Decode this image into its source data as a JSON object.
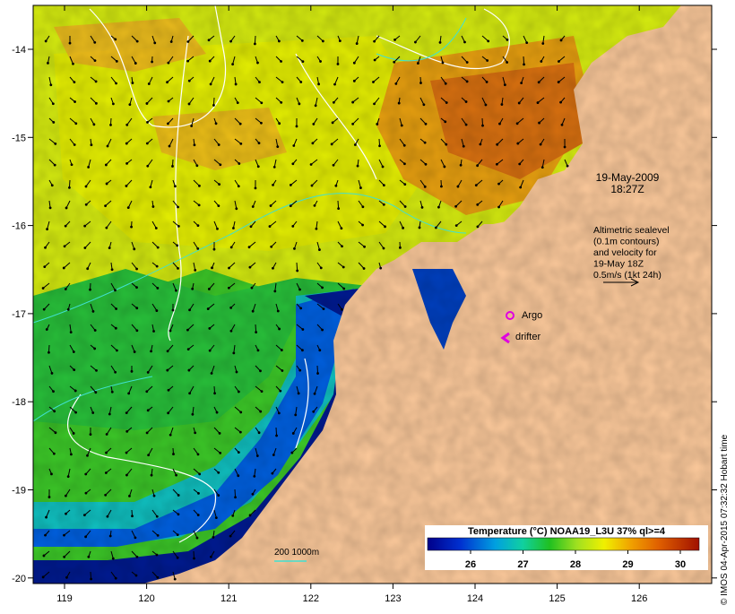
{
  "map": {
    "lon_ticks": [
      "119",
      "120",
      "121",
      "122",
      "123",
      "124",
      "125",
      "126"
    ],
    "lat_ticks": [
      "-14",
      "-15",
      "-16",
      "-17",
      "-18",
      "-19",
      "-20"
    ],
    "date_line1": "19-May-2009",
    "date_line2": "18:27Z",
    "legend_lines": [
      "Altimetric sealevel",
      "(0.1m contours)",
      "and velocity for",
      "19-May 18Z",
      "0.5m/s (1kt 24h)"
    ],
    "argo_label": "Argo",
    "drifter_label": "drifter",
    "depth_label": "200  1000m",
    "colorbar_title": "Temperature (°C) NOAA19_L3U 37% ql>=4",
    "colorbar_ticks": [
      "26",
      "27",
      "28",
      "29",
      "30"
    ],
    "credit": "© IMOS 04-Apr-2015 07:32:32 Hobart time",
    "colors": {
      "land": "#fcc99b",
      "warm": "#e07a10",
      "mid": "#f2e000",
      "green": "#22c020",
      "cold": "#001a90",
      "marker": "#e000e0",
      "contour_shelf": "#40e0d0"
    }
  }
}
